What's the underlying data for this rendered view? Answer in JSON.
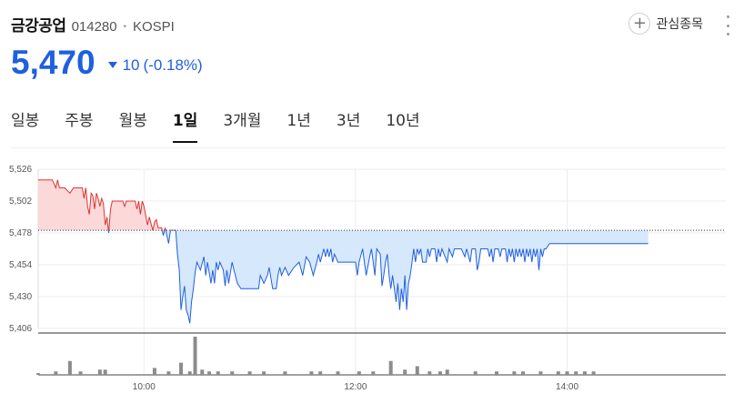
{
  "stock": {
    "name": "금강공업",
    "code": "014280",
    "separator": "•",
    "market": "KOSPI"
  },
  "price": {
    "current": "5,470",
    "change": "10",
    "change_pct": "(-0.18%)"
  },
  "actions": {
    "favorite_label": "관심종목"
  },
  "colors": {
    "down": "#1f5fe0",
    "up": "#e03131",
    "up_fill": "#fbd9d9",
    "down_fill": "#d6e8fb",
    "volume": "#8c8c8c"
  },
  "tabs": [
    {
      "label": "일봉",
      "active": false
    },
    {
      "label": "주봉",
      "active": false
    },
    {
      "label": "월봉",
      "active": false
    },
    {
      "label": "1일",
      "active": true
    },
    {
      "label": "3개월",
      "active": false
    },
    {
      "label": "1년",
      "active": false
    },
    {
      "label": "3년",
      "active": false
    },
    {
      "label": "10년",
      "active": false
    }
  ],
  "chart_data": {
    "type": "line",
    "title": "",
    "xlabel": "",
    "ylabel": "",
    "reference_price": 5480,
    "ylim": [
      5406,
      5526
    ],
    "yticks": [
      "5,526",
      "5,502",
      "5,478",
      "5,454",
      "5,430",
      "5,406"
    ],
    "xlim": [
      "09:00",
      "15:30"
    ],
    "xticks": [
      "10:00",
      "12:00",
      "14:00"
    ],
    "grid": true,
    "series": [
      {
        "values": [
          [
            0,
            5518
          ],
          [
            3,
            5518
          ],
          [
            8,
            5518
          ],
          [
            10,
            5512
          ],
          [
            11,
            5518
          ],
          [
            12,
            5512
          ],
          [
            15,
            5512
          ],
          [
            18,
            5508
          ],
          [
            20,
            5512
          ],
          [
            25,
            5512
          ],
          [
            26,
            5504
          ],
          [
            27,
            5512
          ],
          [
            28,
            5498
          ],
          [
            29,
            5492
          ],
          [
            30,
            5508
          ],
          [
            31,
            5506
          ],
          [
            32,
            5496
          ],
          [
            33,
            5508
          ],
          [
            34,
            5504
          ],
          [
            35,
            5498
          ],
          [
            36,
            5504
          ],
          [
            37,
            5500
          ],
          [
            38,
            5484
          ],
          [
            39,
            5490
          ],
          [
            40,
            5478
          ],
          [
            41,
            5496
          ],
          [
            42,
            5502
          ],
          [
            48,
            5502
          ],
          [
            49,
            5498
          ],
          [
            50,
            5502
          ],
          [
            55,
            5502
          ],
          [
            56,
            5496
          ],
          [
            57,
            5502
          ],
          [
            58,
            5492
          ],
          [
            59,
            5502
          ],
          [
            60,
            5498
          ],
          [
            62,
            5484
          ],
          [
            63,
            5490
          ],
          [
            65,
            5480
          ],
          [
            66,
            5486
          ],
          [
            67,
            5488
          ],
          [
            68,
            5482
          ],
          [
            70,
            5482
          ],
          [
            71,
            5476
          ],
          [
            72,
            5482
          ],
          [
            74,
            5470
          ],
          [
            75,
            5480
          ],
          [
            78,
            5480
          ],
          [
            79,
            5462
          ],
          [
            80,
            5450
          ],
          [
            81,
            5420
          ],
          [
            82,
            5430
          ],
          [
            83,
            5438
          ],
          [
            84,
            5420
          ],
          [
            85,
            5416
          ],
          [
            86,
            5410
          ],
          [
            87,
            5426
          ],
          [
            88,
            5436
          ],
          [
            89,
            5448
          ],
          [
            90,
            5456
          ],
          [
            92,
            5450
          ],
          [
            94,
            5460
          ],
          [
            95,
            5446
          ],
          [
            96,
            5456
          ],
          [
            98,
            5440
          ],
          [
            99,
            5450
          ],
          [
            100,
            5440
          ],
          [
            101,
            5456
          ],
          [
            102,
            5450
          ],
          [
            103,
            5456
          ],
          [
            105,
            5450
          ],
          [
            106,
            5438
          ],
          [
            107,
            5450
          ],
          [
            108,
            5440
          ],
          [
            110,
            5456
          ],
          [
            111,
            5450
          ],
          [
            113,
            5440
          ],
          [
            115,
            5436
          ],
          [
            125,
            5436
          ],
          [
            126,
            5446
          ],
          [
            128,
            5440
          ],
          [
            130,
            5446
          ],
          [
            131,
            5452
          ],
          [
            133,
            5436
          ],
          [
            135,
            5436
          ],
          [
            136,
            5446
          ],
          [
            137,
            5452
          ],
          [
            138,
            5446
          ],
          [
            140,
            5452
          ],
          [
            142,
            5446
          ],
          [
            145,
            5452
          ],
          [
            148,
            5456
          ],
          [
            150,
            5446
          ],
          [
            152,
            5460
          ],
          [
            154,
            5456
          ],
          [
            156,
            5446
          ],
          [
            158,
            5456
          ],
          [
            159,
            5462
          ],
          [
            160,
            5456
          ],
          [
            162,
            5466
          ],
          [
            163,
            5460
          ],
          [
            164,
            5466
          ],
          [
            165,
            5460
          ],
          [
            166,
            5466
          ],
          [
            167,
            5456
          ],
          [
            168,
            5462
          ],
          [
            170,
            5456
          ],
          [
            180,
            5456
          ],
          [
            181,
            5446
          ],
          [
            182,
            5456
          ],
          [
            184,
            5466
          ],
          [
            185,
            5456
          ],
          [
            186,
            5446
          ],
          [
            188,
            5460
          ],
          [
            189,
            5466
          ],
          [
            190,
            5456
          ],
          [
            191,
            5446
          ],
          [
            192,
            5466
          ],
          [
            194,
            5462
          ],
          [
            195,
            5438
          ],
          [
            196,
            5446
          ],
          [
            197,
            5456
          ],
          [
            198,
            5462
          ],
          [
            199,
            5446
          ],
          [
            200,
            5436
          ],
          [
            201,
            5446
          ],
          [
            202,
            5436
          ],
          [
            203,
            5426
          ],
          [
            204,
            5440
          ],
          [
            205,
            5420
          ],
          [
            206,
            5436
          ],
          [
            207,
            5426
          ],
          [
            208,
            5446
          ],
          [
            209,
            5420
          ],
          [
            210,
            5440
          ],
          [
            211,
            5446
          ],
          [
            212,
            5456
          ],
          [
            213,
            5466
          ],
          [
            214,
            5456
          ],
          [
            215,
            5466
          ],
          [
            216,
            5462
          ],
          [
            217,
            5466
          ],
          [
            218,
            5456
          ],
          [
            220,
            5456
          ],
          [
            221,
            5466
          ],
          [
            222,
            5460
          ],
          [
            223,
            5466
          ],
          [
            225,
            5466
          ],
          [
            226,
            5456
          ],
          [
            227,
            5466
          ],
          [
            228,
            5460
          ],
          [
            229,
            5466
          ],
          [
            232,
            5456
          ],
          [
            233,
            5466
          ],
          [
            235,
            5460
          ],
          [
            236,
            5466
          ],
          [
            240,
            5466
          ],
          [
            242,
            5460
          ],
          [
            243,
            5466
          ],
          [
            245,
            5456
          ],
          [
            246,
            5466
          ],
          [
            248,
            5466
          ],
          [
            249,
            5450
          ],
          [
            250,
            5456
          ],
          [
            251,
            5466
          ],
          [
            255,
            5466
          ],
          [
            256,
            5460
          ],
          [
            257,
            5466
          ],
          [
            258,
            5456
          ],
          [
            259,
            5466
          ],
          [
            261,
            5466
          ],
          [
            262,
            5460
          ],
          [
            263,
            5466
          ],
          [
            265,
            5466
          ],
          [
            266,
            5456
          ],
          [
            267,
            5466
          ],
          [
            268,
            5460
          ],
          [
            269,
            5466
          ],
          [
            270,
            5456
          ],
          [
            271,
            5466
          ],
          [
            272,
            5460
          ],
          [
            273,
            5466
          ],
          [
            274,
            5460
          ],
          [
            275,
            5466
          ],
          [
            276,
            5456
          ],
          [
            277,
            5466
          ],
          [
            278,
            5460
          ],
          [
            279,
            5466
          ],
          [
            280,
            5456
          ],
          [
            281,
            5466
          ],
          [
            282,
            5460
          ],
          [
            283,
            5466
          ],
          [
            284,
            5450
          ],
          [
            285,
            5466
          ],
          [
            286,
            5460
          ],
          [
            287,
            5466
          ],
          [
            288,
            5466
          ],
          [
            290,
            5470
          ],
          [
            310,
            5470
          ],
          [
            320,
            5470
          ],
          [
            330,
            5470
          ],
          [
            346,
            5470
          ]
        ]
      }
    ],
    "volume": [
      [
        0,
        1
      ],
      [
        10,
        2
      ],
      [
        18,
        8
      ],
      [
        24,
        2
      ],
      [
        35,
        3
      ],
      [
        38,
        3
      ],
      [
        66,
        4
      ],
      [
        74,
        2
      ],
      [
        81,
        7
      ],
      [
        86,
        2
      ],
      [
        89,
        22
      ],
      [
        93,
        3
      ],
      [
        97,
        2
      ],
      [
        102,
        2
      ],
      [
        110,
        2
      ],
      [
        120,
        2
      ],
      [
        128,
        2
      ],
      [
        140,
        2
      ],
      [
        155,
        2
      ],
      [
        160,
        2
      ],
      [
        170,
        2
      ],
      [
        182,
        2
      ],
      [
        190,
        2
      ],
      [
        200,
        8
      ],
      [
        208,
        3
      ],
      [
        215,
        5
      ],
      [
        222,
        2
      ],
      [
        228,
        2
      ],
      [
        232,
        3
      ],
      [
        248,
        2
      ],
      [
        260,
        2
      ],
      [
        270,
        2
      ],
      [
        275,
        2
      ],
      [
        285,
        2
      ],
      [
        295,
        2
      ],
      [
        300,
        2
      ],
      [
        305,
        2
      ],
      [
        310,
        2
      ],
      [
        315,
        2
      ]
    ]
  }
}
